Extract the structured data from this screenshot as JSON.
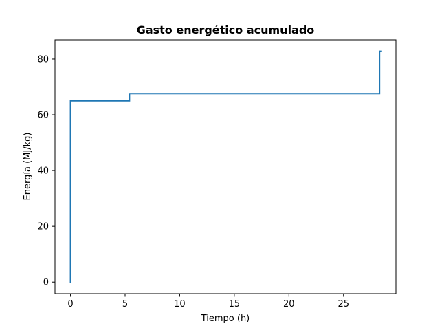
{
  "chart_data": {
    "type": "line",
    "title": "Gasto energético acumulado",
    "xlabel": "Tiempo (h)",
    "ylabel": "Energía (MJ/kg)",
    "xlim": [
      -1.42,
      29.8
    ],
    "ylim": [
      -4.14,
      86.9
    ],
    "xticks": [
      0,
      5,
      10,
      15,
      20,
      25
    ],
    "yticks": [
      0,
      20,
      40,
      60,
      80
    ],
    "xtick_labels": [
      "0",
      "5",
      "10",
      "15",
      "20",
      "25"
    ],
    "ytick_labels": [
      "0",
      "20",
      "40",
      "60",
      "80"
    ],
    "grid": false,
    "series": [
      {
        "color": "#1f77b4",
        "step": "post",
        "x": [
          0,
          0,
          5.4,
          28.3,
          28.4
        ],
        "y": [
          0,
          65.0,
          67.6,
          82.8,
          82.8
        ]
      }
    ]
  }
}
